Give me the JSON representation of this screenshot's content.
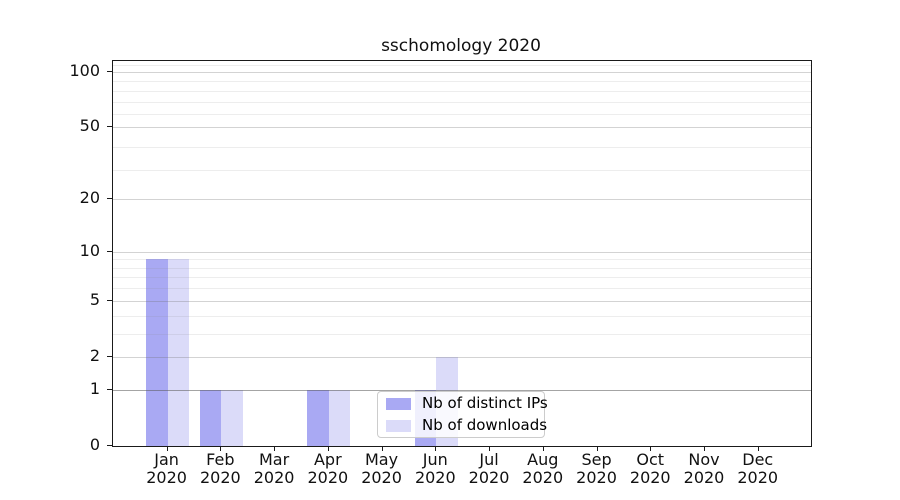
{
  "chart_data": {
    "type": "bar",
    "title": "sschomology 2020",
    "categories": [
      "Jan",
      "Feb",
      "Mar",
      "Apr",
      "May",
      "Jun",
      "Jul",
      "Aug",
      "Sep",
      "Oct",
      "Nov",
      "Dec"
    ],
    "x_sublabel": "2020",
    "series": [
      {
        "name": "Nb of distinct IPs",
        "color": "#a9a9f3",
        "values": [
          9,
          1,
          0,
          1,
          0,
          1,
          0,
          0,
          0,
          0,
          0,
          0
        ]
      },
      {
        "name": "Nb of downloads",
        "color": "#dbdbf9",
        "values": [
          9,
          1,
          0,
          1,
          0,
          2,
          0,
          0,
          0,
          0,
          0,
          0
        ]
      }
    ],
    "y_ticks": [
      0,
      1,
      2,
      5,
      10,
      20,
      50,
      100
    ],
    "y_minor_gridlines": [
      3,
      4,
      6,
      7,
      8,
      9,
      29,
      39,
      59,
      69,
      79,
      89,
      109
    ],
    "y_scale": "log10(1+v)",
    "ylim": [
      0,
      115
    ],
    "grid": true,
    "legend_position": "lower-center"
  }
}
